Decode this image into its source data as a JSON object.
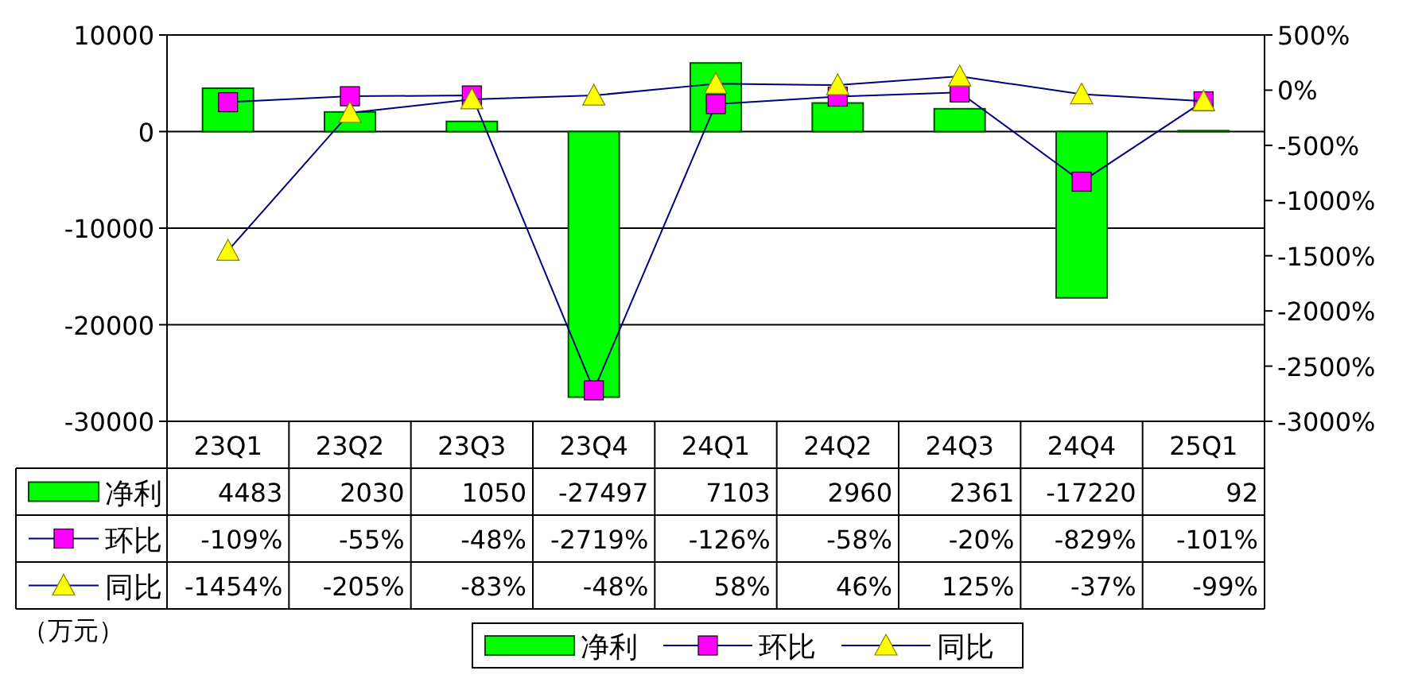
{
  "chart_data": {
    "type": "bar",
    "categories": [
      "23Q1",
      "23Q2",
      "23Q3",
      "23Q4",
      "24Q1",
      "24Q2",
      "24Q3",
      "24Q4",
      "25Q1"
    ],
    "series": [
      {
        "name": "净利",
        "color": "#00ff00",
        "values": [
          4483,
          2030,
          1050,
          -27497,
          7103,
          2960,
          2361,
          -17220,
          92
        ],
        "value_labels": [
          "4483",
          "2030",
          "1050",
          "-27497",
          "7103",
          "2960",
          "2361",
          "-17220",
          "92"
        ]
      },
      {
        "name": "环比",
        "type": "line",
        "axis": "y2",
        "marker": "square",
        "color": "#ff00ff",
        "values": [
          -109,
          -55,
          -48,
          -2719,
          -126,
          -58,
          -20,
          -829,
          -101
        ],
        "value_labels": [
          "-109%",
          "-55%",
          "-48%",
          "-2719%",
          "-126%",
          "-58%",
          "-20%",
          "-829%",
          "-101%"
        ]
      },
      {
        "name": "同比",
        "type": "line",
        "axis": "y2",
        "marker": "triangle",
        "color": "#ffff00",
        "values": [
          -1454,
          -205,
          -83,
          -48,
          58,
          46,
          125,
          -37,
          -99
        ],
        "value_labels": [
          "-1454%",
          "-205%",
          "-83%",
          "-48%",
          "58%",
          "46%",
          "125%",
          "-37%",
          "-99%"
        ]
      }
    ],
    "ylim": [
      -30000,
      10000
    ],
    "yticks": [
      -30000,
      -20000,
      -10000,
      0,
      10000
    ],
    "y2lim": [
      -3000,
      500
    ],
    "y2ticks": [
      {
        "value": -3000,
        "label": "-3000%"
      },
      {
        "value": -2500,
        "label": "-2500%"
      },
      {
        "value": -2000,
        "label": "-2000%"
      },
      {
        "value": -1500,
        "label": "-1500%"
      },
      {
        "value": -1000,
        "label": "-1000%"
      },
      {
        "value": -500,
        "label": "-500%"
      },
      {
        "value": 0,
        "label": "0%"
      },
      {
        "value": 500,
        "label": "500%"
      }
    ],
    "grid": "y",
    "legend": "bottom",
    "annotations": [
      "（万元）"
    ]
  }
}
